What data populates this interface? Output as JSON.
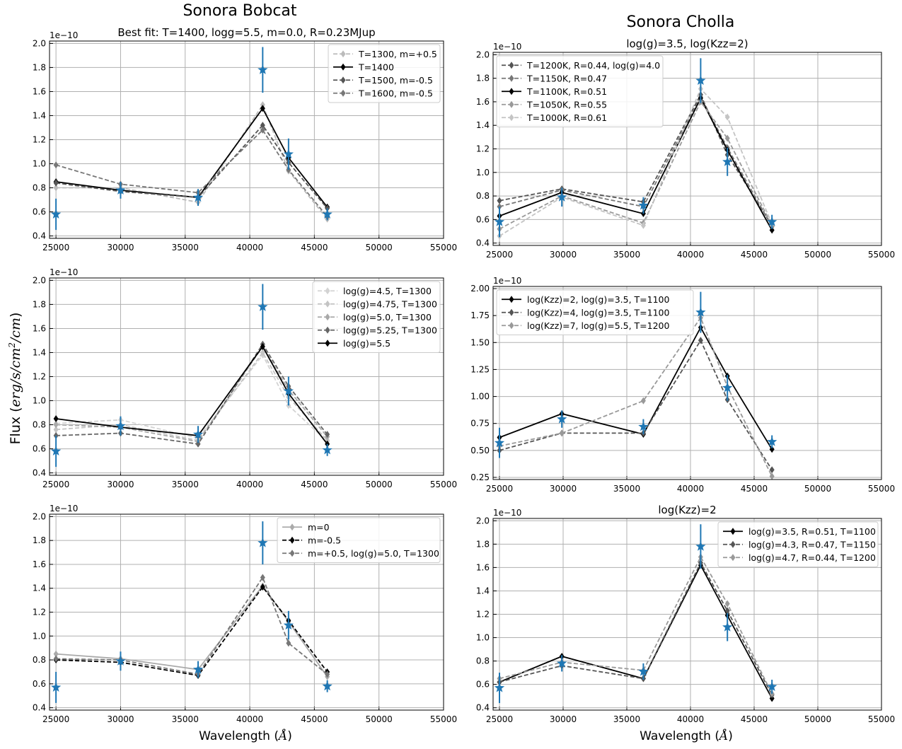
{
  "figure": {
    "left_title": "Sonora Bobcat",
    "right_title": "Sonora Cholla",
    "ylabel_prefix": "Flux (",
    "ylabel_unit_main": "erg/s/cm",
    "ylabel_unit_sup": "2",
    "ylabel_unit_tail": "/cm",
    "ylabel_suffix": ")",
    "xlabel_prefix": "Wavelength (",
    "xlabel_unit": "Å",
    "xlabel_suffix": ")",
    "sci_label": "1e−10"
  },
  "colors": {
    "observed": "#1f77b4",
    "black": "#000000",
    "dark_gray": "#555555",
    "mid_gray": "#777777",
    "light_gray": "#999999",
    "pale_gray": "#bbbbbb",
    "faint_gray": "#d3d3d3"
  },
  "chart_data": [
    {
      "type": "line",
      "title": "Best fit: T=1400, logg=5.5, m=0.0, R=0.23MJup",
      "xlim": [
        24500,
        55000
      ],
      "ylim": [
        0.38,
        2.02
      ],
      "xticks": [
        25000,
        30000,
        35000,
        40000,
        45000,
        50000,
        55000
      ],
      "yticks": [
        0.4,
        0.6,
        0.8,
        1.0,
        1.2,
        1.4,
        1.6,
        1.8,
        2.0
      ],
      "ytick_labels": [
        "0.4",
        "0.6",
        "0.8",
        "1.0",
        "1.2",
        "1.4",
        "1.6",
        "1.8",
        "2.0"
      ],
      "scale_label": "1e−10",
      "grid": true,
      "legend_position": "upper-right",
      "observed": {
        "x": [
          25000,
          30000,
          36000,
          41000,
          43000,
          46000
        ],
        "y": [
          0.58,
          0.78,
          0.72,
          1.78,
          1.08,
          0.58
        ],
        "yerr": [
          0.13,
          0.07,
          0.07,
          0.19,
          0.13,
          0.05
        ]
      },
      "series": [
        {
          "name": "T=1300, m=+0.5",
          "color": "#bbbbbb",
          "dash": true,
          "y": [
            0.8,
            0.8,
            0.68,
            1.49,
            0.94,
            0.54
          ]
        },
        {
          "name": "T=1400",
          "color": "#000000",
          "dash": false,
          "y": [
            0.85,
            0.78,
            0.72,
            1.46,
            1.05,
            0.64
          ]
        },
        {
          "name": "T=1500, m=-0.5",
          "color": "#555555",
          "dash": true,
          "y": [
            0.84,
            0.77,
            0.72,
            1.32,
            1.01,
            0.63
          ]
        },
        {
          "name": "T=1600, m=-0.5",
          "color": "#777777",
          "dash": true,
          "y": [
            0.99,
            0.83,
            0.76,
            1.28,
            0.95,
            0.56
          ]
        }
      ],
      "x": [
        25000,
        30000,
        36000,
        41000,
        43000,
        46000
      ]
    },
    {
      "type": "line",
      "title": "",
      "xlim": [
        24500,
        55000
      ],
      "ylim": [
        0.38,
        2.02
      ],
      "xticks": [
        25000,
        30000,
        35000,
        40000,
        45000,
        50000,
        55000
      ],
      "yticks": [
        0.4,
        0.6,
        0.8,
        1.0,
        1.2,
        1.4,
        1.6,
        1.8,
        2.0
      ],
      "ytick_labels": [
        "0.4",
        "0.6",
        "0.8",
        "1.0",
        "1.2",
        "1.4",
        "1.6",
        "1.8",
        "2.0"
      ],
      "scale_label": "1e−10",
      "grid": true,
      "legend_position": "upper-right",
      "observed": {
        "x": [
          25000,
          30000,
          36000,
          41000,
          43000,
          46000
        ],
        "y": [
          0.58,
          0.79,
          0.72,
          1.78,
          1.08,
          0.59
        ],
        "yerr": [
          0.13,
          0.08,
          0.07,
          0.19,
          0.12,
          0.05
        ]
      },
      "series": [
        {
          "name": "log(g)=4.5, T=1300",
          "color": "#d3d3d3",
          "dash": true,
          "y": [
            0.81,
            0.84,
            0.69,
            1.38,
            0.96,
            0.66
          ]
        },
        {
          "name": "log(g)=4.75, T=1300",
          "color": "#c4c4c4",
          "dash": true,
          "y": [
            0.76,
            0.8,
            0.67,
            1.4,
            1.03,
            0.67
          ]
        },
        {
          "name": "log(g)=5.0, T=1300",
          "color": "#a9a9a9",
          "dash": true,
          "y": [
            0.8,
            0.78,
            0.66,
            1.45,
            1.09,
            0.7
          ]
        },
        {
          "name": "log(g)=5.25, T=1300",
          "color": "#666666",
          "dash": true,
          "y": [
            0.71,
            0.73,
            0.64,
            1.47,
            1.12,
            0.72
          ]
        },
        {
          "name": "log(g)=5.5",
          "color": "#000000",
          "dash": false,
          "y": [
            0.85,
            0.78,
            0.71,
            1.45,
            1.06,
            0.64
          ]
        }
      ],
      "x": [
        25000,
        30000,
        36000,
        41000,
        43000,
        46000
      ]
    },
    {
      "type": "line",
      "title": "",
      "xlim": [
        24500,
        55000
      ],
      "ylim": [
        0.38,
        2.02
      ],
      "xticks": [
        25000,
        30000,
        35000,
        40000,
        45000,
        50000,
        55000
      ],
      "yticks": [
        0.4,
        0.6,
        0.8,
        1.0,
        1.2,
        1.4,
        1.6,
        1.8,
        2.0
      ],
      "ytick_labels": [
        "0.4",
        "0.6",
        "0.8",
        "1.0",
        "1.2",
        "1.4",
        "1.6",
        "1.8",
        "2.0"
      ],
      "scale_label": "1e−10",
      "grid": true,
      "legend_position": "upper-right",
      "observed": {
        "x": [
          25000,
          30000,
          36000,
          41000,
          43000,
          46000
        ],
        "y": [
          0.57,
          0.79,
          0.72,
          1.78,
          1.09,
          0.58
        ],
        "yerr": [
          0.13,
          0.08,
          0.07,
          0.18,
          0.12,
          0.05
        ]
      },
      "series": [
        {
          "name": "m=0",
          "color": "#aaaaaa",
          "dash": false,
          "y": [
            0.85,
            0.81,
            0.72,
            1.42,
            1.12,
            0.66
          ]
        },
        {
          "name": "m=-0.5",
          "color": "#000000",
          "dash": true,
          "y": [
            0.8,
            0.78,
            0.67,
            1.41,
            1.13,
            0.7
          ]
        },
        {
          "name": "m=+0.5, log(g)=5.0, T=1300",
          "color": "#777777",
          "dash": true,
          "y": [
            0.81,
            0.8,
            0.68,
            1.49,
            0.94,
            0.68
          ]
        }
      ],
      "x": [
        25000,
        30000,
        36000,
        41000,
        43000,
        46000
      ]
    },
    {
      "type": "line",
      "title": "log(g)=3.5, log(Kzz=2)",
      "xlim": [
        24500,
        55000
      ],
      "ylim": [
        0.38,
        2.02
      ],
      "xticks": [
        25000,
        30000,
        35000,
        40000,
        45000,
        50000,
        55000
      ],
      "yticks": [
        0.4,
        0.6,
        0.8,
        1.0,
        1.2,
        1.4,
        1.6,
        1.8,
        2.0
      ],
      "ytick_labels": [
        "0.4",
        "0.6",
        "0.8",
        "1.0",
        "1.2",
        "1.4",
        "1.6",
        "1.8",
        "2.0"
      ],
      "scale_label": "1e−10",
      "grid": true,
      "legend_position": "upper-left",
      "observed": {
        "x": [
          25000,
          29900,
          36300,
          40800,
          42900,
          46400
        ],
        "y": [
          0.58,
          0.79,
          0.72,
          1.78,
          1.09,
          0.58
        ],
        "yerr": [
          0.13,
          0.08,
          0.07,
          0.19,
          0.12,
          0.06
        ]
      },
      "series": [
        {
          "name": "T=1200K, R=0.44, log(g)=4.0",
          "color": "#555555",
          "dash": true,
          "y": [
            0.76,
            0.86,
            0.75,
            1.66,
            1.15,
            0.55
          ]
        },
        {
          "name": "T=1150K, R=0.47",
          "color": "#777777",
          "dash": true,
          "y": [
            0.71,
            0.85,
            0.71,
            1.64,
            1.21,
            0.54
          ]
        },
        {
          "name": "T=1100K, R=0.51",
          "color": "#000000",
          "dash": false,
          "y": [
            0.63,
            0.83,
            0.65,
            1.63,
            1.19,
            0.51
          ]
        },
        {
          "name": "T=1050K, R=0.55",
          "color": "#999999",
          "dash": true,
          "y": [
            0.52,
            0.8,
            0.57,
            1.6,
            1.29,
            0.55
          ]
        },
        {
          "name": "T=1000K, R=0.61",
          "color": "#c4c4c4",
          "dash": true,
          "y": [
            0.46,
            0.79,
            0.55,
            1.71,
            1.47,
            0.56
          ]
        }
      ],
      "x": [
        25000,
        29900,
        36300,
        40800,
        42900,
        46400
      ]
    },
    {
      "type": "line",
      "title": "",
      "xlim": [
        24500,
        55000
      ],
      "ylim": [
        0.23,
        2.02
      ],
      "xticks": [
        25000,
        30000,
        35000,
        40000,
        45000,
        50000,
        55000
      ],
      "yticks": [
        0.25,
        0.5,
        0.75,
        1.0,
        1.25,
        1.5,
        1.75,
        2.0
      ],
      "ytick_labels": [
        "0.25",
        "0.50",
        "0.75",
        "1.00",
        "1.25",
        "1.50",
        "1.75",
        "2.00"
      ],
      "scale_label": "1e−10",
      "grid": true,
      "legend_position": "upper-left",
      "observed": {
        "x": [
          25000,
          29900,
          36300,
          40800,
          42900,
          46400
        ],
        "y": [
          0.57,
          0.79,
          0.72,
          1.78,
          1.08,
          0.58
        ],
        "yerr": [
          0.14,
          0.08,
          0.07,
          0.19,
          0.12,
          0.06
        ]
      },
      "series": [
        {
          "name": "log(Kzz)=2, log(g)=3.5, T=1100",
          "color": "#000000",
          "dash": false,
          "y": [
            0.62,
            0.84,
            0.65,
            1.64,
            1.19,
            0.51
          ]
        },
        {
          "name": "log(Kzz)=4, log(g)=3.5, T=1100",
          "color": "#555555",
          "dash": true,
          "y": [
            0.5,
            0.66,
            0.66,
            1.52,
            0.97,
            0.32
          ]
        },
        {
          "name": "log(Kzz)=7, log(g)=5.5, T=1200",
          "color": "#999999",
          "dash": true,
          "y": [
            0.54,
            0.66,
            0.96,
            1.73,
            1.09,
            0.26
          ]
        }
      ],
      "x": [
        25000,
        29900,
        36300,
        40800,
        42900,
        46400
      ]
    },
    {
      "type": "line",
      "title": "log(Kzz)=2",
      "xlim": [
        24500,
        55000
      ],
      "ylim": [
        0.38,
        2.02
      ],
      "xticks": [
        25000,
        30000,
        35000,
        40000,
        45000,
        50000,
        55000
      ],
      "yticks": [
        0.4,
        0.6,
        0.8,
        1.0,
        1.2,
        1.4,
        1.6,
        1.8,
        2.0
      ],
      "ytick_labels": [
        "0.4",
        "0.6",
        "0.8",
        "1.0",
        "1.2",
        "1.4",
        "1.6",
        "1.8",
        "2.0"
      ],
      "scale_label": "1e−10",
      "grid": true,
      "legend_position": "upper-right",
      "observed": {
        "x": [
          25000,
          29900,
          36300,
          40800,
          42900,
          46400
        ],
        "y": [
          0.57,
          0.78,
          0.71,
          1.78,
          1.09,
          0.58
        ],
        "yerr": [
          0.13,
          0.07,
          0.07,
          0.19,
          0.12,
          0.06
        ]
      },
      "series": [
        {
          "name": "log(g)=3.5, R=0.51, T=1100",
          "color": "#000000",
          "dash": false,
          "y": [
            0.62,
            0.84,
            0.65,
            1.62,
            1.19,
            0.48
          ]
        },
        {
          "name": "log(g)=4.3, R=0.47, T=1150",
          "color": "#555555",
          "dash": true,
          "y": [
            0.62,
            0.76,
            0.65,
            1.64,
            1.23,
            0.51
          ]
        },
        {
          "name": "log(g)=4.7, R=0.44, T=1200",
          "color": "#999999",
          "dash": true,
          "y": [
            0.65,
            0.79,
            0.72,
            1.69,
            1.29,
            0.52
          ]
        }
      ],
      "x": [
        25000,
        29900,
        36300,
        40800,
        42900,
        46400
      ]
    }
  ]
}
